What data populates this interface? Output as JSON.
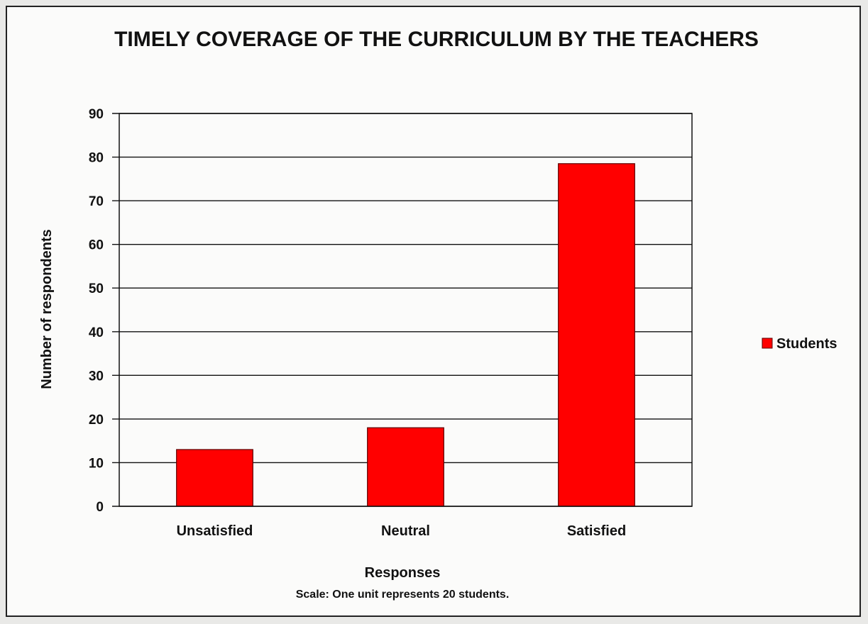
{
  "chart_data": {
    "type": "bar",
    "title": "TIMELY COVERAGE OF THE CURRICULUM BY THE TEACHERS",
    "xlabel": "Responses",
    "ylabel": "Number of respondents",
    "note": "Scale: One unit represents 20 students.",
    "categories": [
      "Unsatisfied",
      "Neutral",
      "Satisfied"
    ],
    "series": [
      {
        "name": "Students",
        "values": [
          13,
          18,
          78.5
        ]
      }
    ],
    "ylim": [
      0,
      90
    ],
    "yticks": [
      0,
      10,
      20,
      30,
      40,
      50,
      60,
      70,
      80,
      90
    ],
    "grid": true,
    "legend_position": "right",
    "colors": {
      "bar": "#ff0000",
      "bar_edge": "#5a0000",
      "grid": "#111111"
    }
  }
}
